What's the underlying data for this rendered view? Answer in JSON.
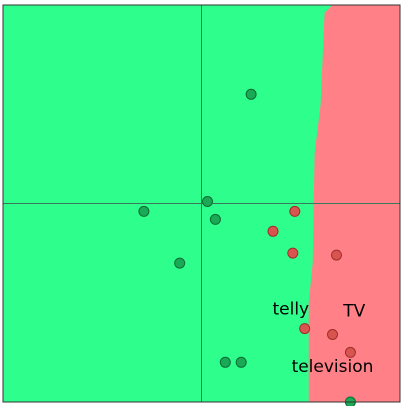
{
  "chart_data": {
    "type": "scatter",
    "title": "",
    "xlabel": "",
    "ylabel": "",
    "xlim": [
      -1,
      1
    ],
    "ylim": [
      -1,
      1
    ],
    "axes_lines": true,
    "grid": false,
    "legend": "none",
    "region_boundary": [
      {
        "y": 1.0,
        "x": 0.66
      },
      {
        "y": 0.98,
        "x": 0.64
      },
      {
        "y": 0.96,
        "x": 0.62
      },
      {
        "y": 0.5,
        "x": 0.6
      },
      {
        "y": 0.25,
        "x": 0.57
      },
      {
        "y": -0.3,
        "x": 0.56
      },
      {
        "y": -0.5,
        "x": 0.54
      },
      {
        "y": -1.0,
        "x": 0.54
      }
    ],
    "series": [
      {
        "class": "green",
        "color": "#1aaa55",
        "points": [
          {
            "x": 0.25,
            "y": 0.55
          },
          {
            "x": 0.03,
            "y": 0.01
          },
          {
            "x": -0.29,
            "y": -0.04
          },
          {
            "x": 0.07,
            "y": -0.08
          },
          {
            "x": -0.11,
            "y": -0.3
          },
          {
            "x": 0.12,
            "y": -0.8
          },
          {
            "x": 0.2,
            "y": -0.8
          },
          {
            "x": 0.75,
            "y": -1.0
          }
        ]
      },
      {
        "class": "red",
        "color": "#d9534f",
        "points": [
          {
            "x": 0.47,
            "y": -0.04
          },
          {
            "x": 0.36,
            "y": -0.14
          },
          {
            "x": 0.46,
            "y": -0.25
          },
          {
            "x": 0.68,
            "y": -0.26
          },
          {
            "x": 0.52,
            "y": -0.63
          },
          {
            "x": 0.66,
            "y": -0.66
          },
          {
            "x": 0.75,
            "y": -0.75
          }
        ]
      }
    ],
    "annotations": [
      {
        "text": "telly",
        "x": 0.45,
        "y": -0.56
      },
      {
        "text": "TV",
        "x": 0.77,
        "y": -0.57
      },
      {
        "text": "television",
        "x": 0.66,
        "y": -0.85
      }
    ],
    "colors": {
      "region_left": "#2efe8c",
      "region_right": "#ff8087",
      "axis_line": "#3a7a5a",
      "frame": "#333333"
    }
  }
}
